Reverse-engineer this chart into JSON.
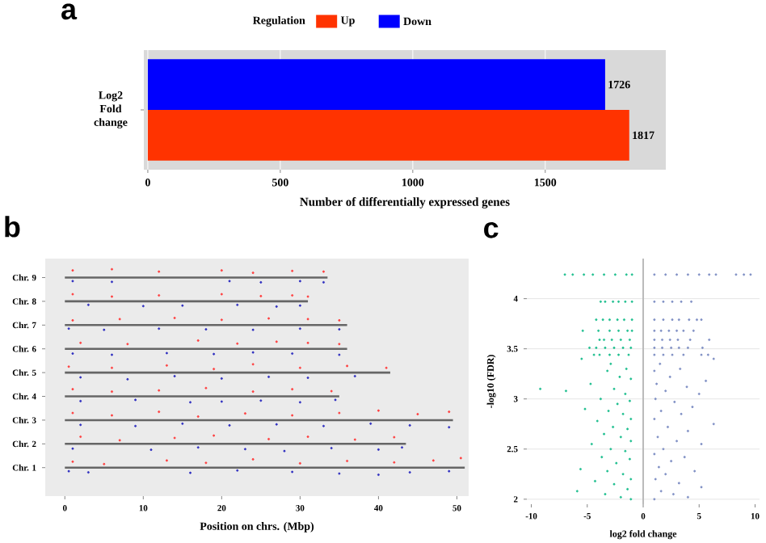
{
  "chart_data": [
    {
      "type": "bar",
      "orientation": "horizontal",
      "title": "a",
      "xlabel": "Number of differentially expressed genes",
      "categories": [
        "Log2 Fold change"
      ],
      "legend": "top",
      "legend_title": "Regulation",
      "data_labels": true,
      "grid": "x",
      "xlim": [
        -15,
        1955
      ],
      "xticks": [
        0,
        500,
        1000,
        1500
      ],
      "series": [
        {
          "name": "Up",
          "color": "#ff3300",
          "values": [
            1817
          ]
        },
        {
          "name": "Down",
          "color": "#0000ff",
          "values": [
            1726
          ]
        }
      ]
    },
    {
      "type": "scatter",
      "title": "b",
      "xlabel": "Position on chrs. (Mbp)",
      "marker": "circle",
      "xlim": [
        -2.5,
        51.5
      ],
      "xticks": [
        0,
        10,
        20,
        30,
        40,
        50
      ],
      "ylim": [
        -0.2,
        9.8
      ],
      "yticks": [
        {
          "value": 1,
          "label": "Chr. 1"
        },
        {
          "value": 2,
          "label": "Chr. 2"
        },
        {
          "value": 3,
          "label": "Chr. 3"
        },
        {
          "value": 4,
          "label": "Chr. 4"
        },
        {
          "value": 5,
          "label": "Chr. 5"
        },
        {
          "value": 6,
          "label": "Chr. 6"
        },
        {
          "value": 7,
          "label": "Chr. 7"
        },
        {
          "value": 8,
          "label": "Chr. 8"
        },
        {
          "value": 9,
          "label": "Chr. 9"
        }
      ],
      "series": [
        {
          "type": "line",
          "marker": "none",
          "color": "#666666",
          "x": [
            0,
            51
          ],
          "values": [
            1,
            1
          ]
        },
        {
          "type": "line",
          "marker": "none",
          "color": "#666666",
          "x": [
            0,
            43.5
          ],
          "values": [
            2,
            2
          ]
        },
        {
          "type": "line",
          "marker": "none",
          "color": "#666666",
          "x": [
            0,
            49.5
          ],
          "values": [
            3,
            3
          ]
        },
        {
          "type": "line",
          "marker": "none",
          "color": "#666666",
          "x": [
            0,
            35
          ],
          "values": [
            4,
            4
          ]
        },
        {
          "type": "line",
          "marker": "none",
          "color": "#666666",
          "x": [
            0,
            41.5
          ],
          "values": [
            5,
            5
          ]
        },
        {
          "type": "line",
          "marker": "none",
          "color": "#666666",
          "x": [
            0,
            36
          ],
          "values": [
            6,
            6
          ]
        },
        {
          "type": "line",
          "marker": "none",
          "color": "#666666",
          "x": [
            0,
            36
          ],
          "values": [
            7,
            7
          ]
        },
        {
          "type": "line",
          "marker": "none",
          "color": "#666666",
          "x": [
            0,
            31
          ],
          "values": [
            8,
            8
          ]
        },
        {
          "type": "line",
          "marker": "none",
          "color": "#666666",
          "x": [
            0,
            33.5
          ],
          "values": [
            9,
            9
          ]
        },
        {
          "color": "#ff4040",
          "x": [
            1,
            5,
            13,
            18,
            24,
            30,
            36,
            42,
            47,
            50.5,
            2,
            7,
            14,
            19,
            26,
            31,
            37,
            42,
            1,
            6,
            12,
            17,
            23,
            29,
            35,
            40,
            45,
            49,
            1,
            6,
            12,
            18,
            24,
            29,
            34,
            0.5,
            6,
            13,
            19,
            24,
            30,
            36,
            41,
            2,
            8,
            17,
            22,
            27,
            31,
            35,
            1,
            7,
            14,
            20,
            26,
            31,
            35,
            1,
            6,
            12,
            20,
            25,
            29,
            31,
            1,
            6,
            12,
            20,
            24,
            29,
            33
          ],
          "values": [
            1.25,
            1.15,
            1.3,
            1.2,
            1.35,
            1.18,
            1.28,
            1.22,
            1.3,
            1.4,
            2.3,
            2.15,
            2.25,
            2.35,
            2.2,
            2.3,
            2.18,
            2.28,
            3.3,
            3.2,
            3.35,
            3.15,
            3.28,
            3.2,
            3.3,
            3.4,
            3.25,
            3.35,
            4.3,
            4.2,
            4.25,
            4.35,
            4.2,
            4.3,
            4.22,
            5.25,
            5.2,
            5.3,
            5.15,
            5.35,
            5.2,
            5.28,
            5.2,
            6.25,
            6.2,
            6.35,
            6.22,
            6.3,
            6.25,
            6.2,
            7.2,
            7.25,
            7.3,
            7.22,
            7.28,
            7.25,
            7.2,
            8.3,
            8.2,
            8.25,
            8.3,
            8.22,
            8.25,
            8.2,
            9.3,
            9.35,
            9.25,
            9.3,
            9.2,
            9.28,
            9.25
          ]
        },
        {
          "color": "#3030c0",
          "x": [
            0.5,
            3,
            16,
            22,
            29,
            35,
            40,
            44,
            49,
            1,
            11,
            17,
            23,
            28,
            34,
            40,
            43,
            2,
            9,
            15,
            21,
            27,
            33,
            39,
            44,
            49,
            2,
            9,
            16,
            20,
            25,
            30,
            34.5,
            2,
            8,
            14,
            20,
            26,
            31,
            37,
            1,
            6,
            13,
            19,
            24,
            29,
            35,
            0.5,
            5,
            12,
            18,
            24,
            30,
            35,
            3,
            10,
            15,
            22,
            27,
            30,
            1,
            6,
            21,
            25,
            30,
            33
          ],
          "values": [
            0.85,
            0.8,
            0.78,
            0.88,
            0.82,
            0.75,
            0.7,
            0.8,
            0.85,
            1.8,
            1.75,
            1.85,
            1.78,
            1.7,
            1.82,
            1.76,
            1.85,
            2.8,
            2.75,
            2.85,
            2.78,
            2.82,
            2.75,
            2.85,
            2.78,
            2.7,
            3.8,
            3.85,
            3.75,
            3.78,
            3.82,
            3.75,
            3.85,
            4.8,
            4.72,
            4.85,
            4.75,
            4.82,
            4.78,
            4.85,
            5.8,
            5.75,
            5.82,
            5.78,
            5.85,
            5.8,
            5.75,
            6.85,
            6.8,
            6.85,
            6.82,
            6.8,
            6.85,
            6.82,
            7.85,
            7.8,
            7.82,
            7.85,
            7.78,
            7.82,
            8.85,
            8.82,
            8.85,
            8.8,
            8.85,
            8.8
          ]
        }
      ]
    },
    {
      "type": "scatter",
      "title": "c",
      "xlabel": "log2 fold change",
      "ylabel": "-log10 (FDR)",
      "marker": "circle",
      "grid": "y",
      "xlim": [
        -10.4,
        10.4
      ],
      "xticks": [
        -10,
        -5,
        0,
        5,
        10
      ],
      "ylim": [
        1.95,
        4.4
      ],
      "yticks": [
        2,
        2.5,
        3,
        3.5,
        4
      ],
      "ref_lines": [
        {
          "axis": "x",
          "value": 0,
          "color": "#bbbbbb"
        }
      ],
      "series": [
        {
          "color": "#1fbf8f",
          "x": [
            -7,
            -6.3,
            -5.3,
            -4.5,
            -3.5,
            -2.5,
            -1.5,
            -1.0,
            -3.8,
            -3.4,
            -2.7,
            -2.2,
            -1.6,
            -1.0,
            -4.2,
            -3.6,
            -3.0,
            -2.3,
            -1.7,
            -1.0,
            -5.4,
            -4.0,
            -3.0,
            -2.2,
            -1.4,
            -1.0,
            -3.9,
            -3.5,
            -2.8,
            -2.0,
            -1.2,
            -4.8,
            -4.2,
            -3.4,
            -2.6,
            -1.8,
            -1.1,
            -4.4,
            -3.9,
            -3.0,
            -2.2,
            -1.3,
            -5.5,
            -2.9,
            -1.5,
            -3.2,
            -2.1,
            -1.1,
            -4.7,
            -9.2,
            -6.9,
            -2.6,
            -1.6,
            -3.8,
            -1.2,
            -2.3,
            -5.2,
            -3.1,
            -1.8,
            -1.1,
            -4.1,
            -2.7,
            -1.4,
            -3.5,
            -2.0,
            -1.1,
            -4.6,
            -2.9,
            -1.6,
            -3.7,
            -1.2,
            -2.4,
            -5.6,
            -3.2,
            -1.8,
            -1.1,
            -4.3,
            -2.6,
            -1.4,
            -5.9,
            -3.4,
            -2.0,
            -1.1
          ],
          "values": [
            4.24,
            4.24,
            4.24,
            4.24,
            4.24,
            4.24,
            4.24,
            4.24,
            3.97,
            3.97,
            3.97,
            3.97,
            3.97,
            3.97,
            3.79,
            3.79,
            3.79,
            3.79,
            3.79,
            3.79,
            3.68,
            3.68,
            3.68,
            3.68,
            3.68,
            3.68,
            3.59,
            3.59,
            3.59,
            3.59,
            3.59,
            3.51,
            3.51,
            3.51,
            3.51,
            3.51,
            3.51,
            3.44,
            3.44,
            3.44,
            3.44,
            3.44,
            3.4,
            3.35,
            3.3,
            3.28,
            3.22,
            3.2,
            3.15,
            3.1,
            3.08,
            3.1,
            3.05,
            3.0,
            2.98,
            2.95,
            2.9,
            2.88,
            2.85,
            2.8,
            2.78,
            2.72,
            2.7,
            2.65,
            2.62,
            2.58,
            2.55,
            2.5,
            2.48,
            2.42,
            2.4,
            2.36,
            2.3,
            2.28,
            2.25,
            2.2,
            2.18,
            2.15,
            2.1,
            2.08,
            2.05,
            2.02,
            2.0
          ]
        },
        {
          "color": "#7f8fc4",
          "x": [
            1.0,
            2.0,
            3.0,
            4.0,
            5.0,
            5.9,
            6.5,
            8.3,
            9.0,
            9.6,
            1.0,
            1.8,
            2.6,
            3.4,
            4.3,
            1.0,
            1.8,
            2.6,
            3.2,
            4.1,
            4.8,
            5.2,
            1.0,
            1.6,
            2.3,
            3.0,
            3.6,
            4.5,
            1.0,
            1.7,
            2.4,
            3.1,
            4.2,
            5.9,
            1.0,
            1.7,
            2.5,
            3.2,
            4.0,
            5.3,
            1.0,
            1.8,
            2.6,
            3.6,
            5.2,
            5.8,
            6.3,
            1.5,
            3.3,
            1.0,
            2.4,
            5.6,
            1.2,
            3.9,
            2.0,
            5.0,
            1.1,
            2.8,
            4.4,
            1.6,
            3.4,
            1.0,
            6.3,
            2.2,
            4.0,
            1.3,
            3.0,
            5.2,
            1.8,
            1.0,
            3.7,
            2.5,
            1.4,
            4.6,
            2.0,
            1.1,
            3.2,
            5.2,
            1.6,
            2.7,
            1.0,
            4.0
          ],
          "values": [
            4.24,
            4.24,
            4.24,
            4.24,
            4.24,
            4.24,
            4.24,
            4.24,
            4.24,
            4.24,
            3.97,
            3.97,
            3.97,
            3.97,
            3.97,
            3.79,
            3.79,
            3.79,
            3.79,
            3.79,
            3.79,
            3.79,
            3.68,
            3.68,
            3.68,
            3.68,
            3.68,
            3.68,
            3.59,
            3.59,
            3.59,
            3.59,
            3.59,
            3.59,
            3.51,
            3.51,
            3.51,
            3.51,
            3.51,
            3.51,
            3.44,
            3.44,
            3.44,
            3.44,
            3.44,
            3.44,
            3.4,
            3.35,
            3.3,
            3.28,
            3.22,
            3.18,
            3.15,
            3.12,
            3.08,
            3.05,
            3.0,
            2.97,
            2.92,
            2.88,
            2.85,
            2.8,
            2.75,
            2.72,
            2.68,
            2.62,
            2.58,
            2.55,
            2.5,
            2.45,
            2.42,
            2.38,
            2.32,
            2.28,
            2.25,
            2.2,
            2.16,
            2.12,
            2.08,
            2.05,
            2.0,
            2.02
          ]
        }
      ]
    }
  ]
}
